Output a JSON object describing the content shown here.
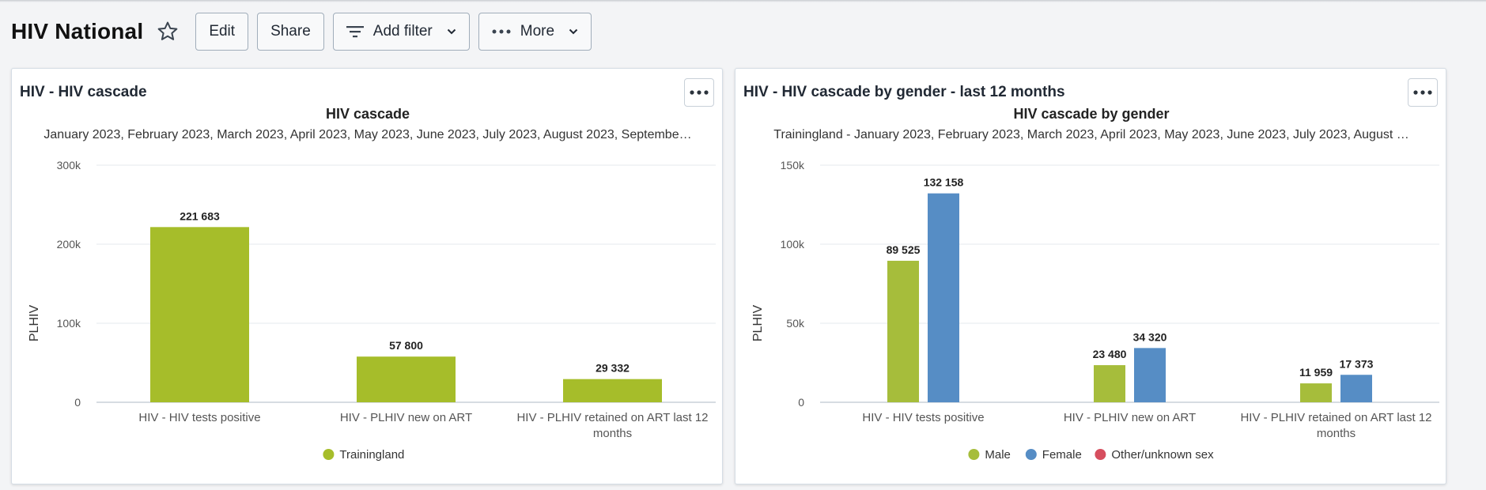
{
  "header": {
    "title": "HIV National",
    "buttons": {
      "edit": "Edit",
      "share": "Share",
      "add_filter": "Add filter",
      "more": "More"
    },
    "icons": {
      "star": "star-icon",
      "filter": "filter-icon",
      "more": "more-dots-icon",
      "chevron": "chevron-down-icon"
    }
  },
  "cards": [
    {
      "title": "HIV - HIV cascade"
    },
    {
      "title": "HIV - HIV cascade by gender - last 12 months"
    }
  ],
  "chart_data": [
    {
      "type": "bar",
      "title": "HIV cascade",
      "subtitle": "January 2023, February 2023, March 2023, April 2023, May 2023, June 2023, July 2023, August 2023, Septembe…",
      "ylabel": "PLHIV",
      "ylim": [
        0,
        300000
      ],
      "yticks": [
        0,
        100000,
        200000,
        300000
      ],
      "ytick_labels": [
        "0",
        "100k",
        "200k",
        "300k"
      ],
      "categories": [
        [
          "HIV - HIV tests positive"
        ],
        [
          "HIV - PLHIV new on ART"
        ],
        [
          "HIV - PLHIV retained on ART last 12",
          "months"
        ]
      ],
      "series": [
        {
          "name": "Trainingland",
          "color": "#a6bd2a",
          "values": [
            221683,
            57800,
            29332
          ],
          "labels": [
            "221 683",
            "57 800",
            "29 332"
          ]
        }
      ],
      "legend_position": "bottom"
    },
    {
      "type": "bar",
      "title": "HIV cascade by gender",
      "subtitle": "Trainingland - January 2023, February 2023, March 2023, April 2023, May 2023, June 2023, July 2023, August …",
      "ylabel": "PLHIV",
      "ylim": [
        0,
        150000
      ],
      "yticks": [
        0,
        50000,
        100000,
        150000
      ],
      "ytick_labels": [
        "0",
        "50k",
        "100k",
        "150k"
      ],
      "categories": [
        [
          "HIV - HIV tests positive"
        ],
        [
          "HIV - PLHIV new on ART"
        ],
        [
          "HIV - PLHIV retained on ART last 12",
          "months"
        ]
      ],
      "series": [
        {
          "name": "Male",
          "color": "#a6bd3b",
          "values": [
            89525,
            23480,
            11959
          ],
          "labels": [
            "89 525",
            "23 480",
            "11 959"
          ]
        },
        {
          "name": "Female",
          "color": "#568dc5",
          "values": [
            132158,
            34320,
            17373
          ],
          "labels": [
            "132 158",
            "34 320",
            "17 373"
          ]
        },
        {
          "name": "Other/unknown sex",
          "color": "#d64e5e",
          "values": [
            0,
            0,
            0
          ],
          "labels": [
            "",
            "",
            ""
          ]
        }
      ],
      "legend_position": "bottom"
    }
  ]
}
